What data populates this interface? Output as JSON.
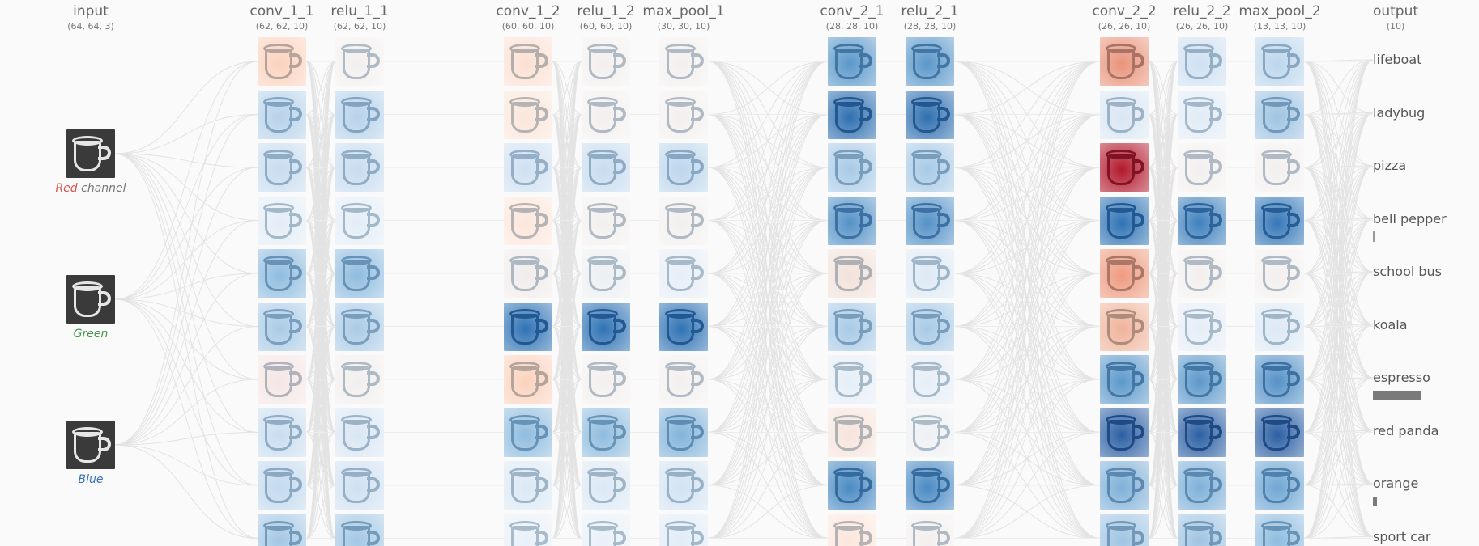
{
  "input": {
    "title": "input",
    "shape": "(64, 64, 3)",
    "channels": [
      {
        "label": "Red",
        "suffix": " channel",
        "color": "#d9534f"
      },
      {
        "label": "Green",
        "suffix": "",
        "color": "#3a9a4a"
      },
      {
        "label": "Blue",
        "suffix": "",
        "color": "#3b73b9"
      }
    ]
  },
  "layers": [
    {
      "name": "conv_1_1",
      "shape": "(62, 62, 10)",
      "tints": [
        "#fbd2bd",
        "#b6d2ea",
        "#c7dcef",
        "#e3edf6",
        "#8fbcdf",
        "#aacbe6",
        "#f4e6e4",
        "#c9ddf0",
        "#c2d9ee",
        "#a3c7e4"
      ]
    },
    {
      "name": "relu_1_1",
      "shape": "(62, 62, 10)",
      "tints": [
        "#f3efef",
        "#b6d2ea",
        "#c7dcef",
        "#e3edf6",
        "#8fbcdf",
        "#aacbe6",
        "#f1eeee",
        "#d9e6f3",
        "#cfe0f1",
        "#a3c7e4"
      ]
    },
    {
      "name": "conv_1_2",
      "shape": "(60, 60, 10)",
      "tints": [
        "#fbe0d2",
        "#fbe6da",
        "#cfe0f1",
        "#fce6dc",
        "#f1ecec",
        "#2f72b4",
        "#fbd2bd",
        "#8fbcdf",
        "#dbe8f4",
        "#e8f0f8"
      ]
    },
    {
      "name": "relu_1_2",
      "shape": "(60, 60, 10)",
      "tints": [
        "#f3efef",
        "#f3efef",
        "#c7dcef",
        "#f3efef",
        "#eceff2",
        "#2f72b4",
        "#f3efef",
        "#8fbcdf",
        "#dbe8f4",
        "#e8f0f8"
      ]
    },
    {
      "name": "max_pool_1",
      "shape": "(30, 30, 10)",
      "tints": [
        "#f3efef",
        "#f3efef",
        "#bcd6ec",
        "#f3efef",
        "#e7eef6",
        "#2f72b4",
        "#f3efef",
        "#82b3da",
        "#d2e3f2",
        "#e1ecf6"
      ]
    },
    {
      "name": "conv_2_1",
      "shape": "(28, 28, 10)",
      "tints": [
        "#5a97c9",
        "#2f6fb0",
        "#a8cae6",
        "#5591c7",
        "#f2e1da",
        "#a8cae6",
        "#e6eef6",
        "#f6e4dc",
        "#4a8ac3",
        "#fbe6dc"
      ]
    },
    {
      "name": "relu_2_1",
      "shape": "(28, 28, 10)",
      "tints": [
        "#5a97c9",
        "#2f6fb0",
        "#a8cae6",
        "#5591c7",
        "#dde9f4",
        "#a8cae6",
        "#e6eef6",
        "#eef0f3",
        "#4a8ac3",
        "#f3efef"
      ]
    },
    {
      "name": "conv_2_2",
      "shape": "(26, 26, 10)",
      "tints": [
        "#e9937a",
        "#d9e6f3",
        "#b2182b",
        "#2f72b4",
        "#ee9a7f",
        "#f0b39a",
        "#5c98ca",
        "#2b5fa3",
        "#7fb0d8",
        "#9fc4e2"
      ]
    },
    {
      "name": "relu_2_2",
      "shape": "(26, 26, 10)",
      "tints": [
        "#cfe0f1",
        "#e1ecf6",
        "#f3efef",
        "#3f80bd",
        "#f3efef",
        "#e6eef6",
        "#5c98ca",
        "#2b5fa3",
        "#7fb0d8",
        "#9fc4e2"
      ]
    },
    {
      "name": "max_pool_2",
      "shape": "(13, 13, 10)",
      "tints": [
        "#bcd6ec",
        "#9fc4e2",
        "#f3efef",
        "#3577b8",
        "#f3efef",
        "#dde9f4",
        "#5591c7",
        "#2b5fa3",
        "#6fa6d3",
        "#8fbcdf"
      ]
    }
  ],
  "output": {
    "title": "output",
    "shape": "(10)",
    "classes": [
      {
        "label": "lifeboat",
        "prob": 0.0
      },
      {
        "label": "ladybug",
        "prob": 0.0
      },
      {
        "label": "pizza",
        "prob": 0.0
      },
      {
        "label": "bell pepper",
        "prob": 0.02
      },
      {
        "label": "school bus",
        "prob": 0.0
      },
      {
        "label": "koala",
        "prob": 0.0
      },
      {
        "label": "espresso",
        "prob": 0.83
      },
      {
        "label": "red panda",
        "prob": 0.0
      },
      {
        "label": "orange",
        "prob": 0.07
      },
      {
        "label": "sport car",
        "prob": 0.0
      }
    ]
  }
}
